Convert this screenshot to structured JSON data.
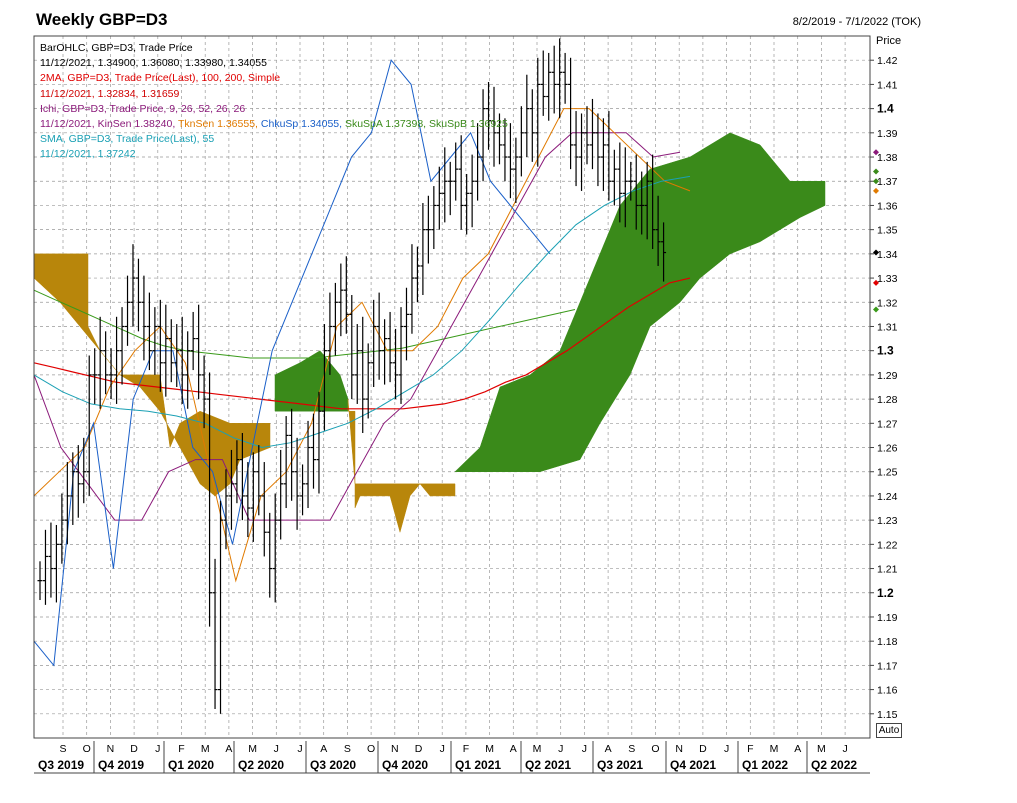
{
  "header": {
    "title": "Weekly GBP=D3",
    "date_range": "8/2/2019 - 7/1/2022 (TOK)",
    "price_axis_label": "Price",
    "auto_button": "Auto"
  },
  "legend": [
    {
      "text": "BarOHLC, GBP=D3, Trade Price",
      "color": "#000000"
    },
    {
      "text": "11/12/2021, 1.34900, 1.36080, 1.33980, 1.34055",
      "color": "#000000"
    },
    {
      "text": "2MA, GBP=D3, Trade Price(Last),  100, 200, Simple",
      "color": "#e00000"
    },
    {
      "text": "11/12/2021, 1.32834, 1.31659",
      "color": "#d00000",
      "text2": "",
      "color2": ""
    },
    {
      "text": "Ichi, GBP=D3, Trade Price,  9, 26, 52, 26, 26",
      "color": "#8b1a7a"
    },
    {
      "segments": [
        {
          "text": "11/12/2021, KinSen 1.38240, ",
          "color": "#8b1a7a"
        },
        {
          "text": "TknSen 1.36555, ",
          "color": "#e07a00"
        },
        {
          "text": "ChkuSp 1.34055, ",
          "color": "#1a5fc8"
        },
        {
          "text": "SkuSpA 1.37398, ",
          "color": "#3a8a1a"
        },
        {
          "text": "SkuSpB 1.36925",
          "color": "#3a8a1a"
        }
      ]
    },
    {
      "text": "SMA, GBP=D3, Trade Price(Last),  55",
      "color": "#1aa0b4"
    },
    {
      "text": "11/12/2021, 1.37242",
      "color": "#1aa0b4"
    }
  ],
  "colors": {
    "ma100": "#e00000",
    "ma200": "#3a9a1a",
    "kijun": "#8b1a7a",
    "tenkan": "#e07a00",
    "chikou": "#1a5fc8",
    "sma55": "#1aa0b4",
    "cloud_bull": "#3a8a1a",
    "cloud_bear": "#b8860b",
    "bars": "#000000"
  },
  "chart_data": {
    "type": "line",
    "title": "Weekly GBP=D3",
    "ylim": [
      1.14,
      1.43
    ],
    "y_ticks": [
      "1.42",
      "1.41",
      "1.4",
      "1.39",
      "1.38",
      "1.37",
      "1.36",
      "1.35",
      "1.34",
      "1.33",
      "1.32",
      "1.31",
      "1.3",
      "1.29",
      "1.28",
      "1.27",
      "1.26",
      "1.25",
      "1.24",
      "1.23",
      "1.22",
      "1.21",
      "1.2",
      "1.19",
      "1.18",
      "1.17",
      "1.16",
      "1.15"
    ],
    "month_labels": [
      "S",
      "O",
      "N",
      "D",
      "J",
      "F",
      "M",
      "A",
      "M",
      "J",
      "J",
      "A",
      "S",
      "O",
      "N",
      "D",
      "J",
      "F",
      "M",
      "A",
      "M",
      "J",
      "J",
      "A",
      "S",
      "O",
      "N",
      "D",
      "J",
      "F",
      "M",
      "A",
      "M",
      "J"
    ],
    "quarter_labels": [
      "Q3 2019",
      "Q4 2019",
      "Q1 2020",
      "Q2 2020",
      "Q3 2020",
      "Q4 2020",
      "Q1 2021",
      "Q2 2021",
      "Q3 2021",
      "Q4 2021",
      "Q1 2022",
      "Q2 2022"
    ],
    "last_bar": {
      "date": "11/12/2021",
      "open": 1.349,
      "high": 1.3608,
      "low": 1.3398,
      "close": 1.34055
    },
    "closes": [
      1.205,
      1.215,
      1.21,
      1.22,
      1.23,
      1.24,
      1.25,
      1.245,
      1.25,
      1.29,
      1.29,
      1.3,
      1.29,
      1.29,
      1.3,
      1.31,
      1.32,
      1.33,
      1.32,
      1.31,
      1.3,
      1.31,
      1.295,
      1.305,
      1.295,
      1.3,
      1.29,
      1.3,
      1.305,
      1.29,
      1.28,
      1.2,
      1.16,
      1.23,
      1.24,
      1.245,
      1.255,
      1.24,
      1.235,
      1.25,
      1.24,
      1.225,
      1.21,
      1.23,
      1.245,
      1.265,
      1.25,
      1.24,
      1.245,
      1.26,
      1.255,
      1.275,
      1.3,
      1.31,
      1.32,
      1.325,
      1.315,
      1.29,
      1.3,
      1.28,
      1.295,
      1.31,
      1.3,
      1.305,
      1.295,
      1.29,
      1.31,
      1.315,
      1.33,
      1.335,
      1.35,
      1.35,
      1.36,
      1.365,
      1.37,
      1.37,
      1.375,
      1.36,
      1.365,
      1.37,
      1.38,
      1.4,
      1.395,
      1.39,
      1.385,
      1.38,
      1.375,
      1.38,
      1.39,
      1.4,
      1.39,
      1.41,
      1.405,
      1.415,
      1.41,
      1.415,
      1.41,
      1.385,
      1.38,
      1.39,
      1.385,
      1.39,
      1.38,
      1.385,
      1.37,
      1.375,
      1.365,
      1.37,
      1.37,
      1.36,
      1.36,
      1.37,
      1.35,
      1.345,
      1.34055
    ],
    "series": [
      {
        "name": "SMA 100",
        "values": [
          1.295,
          1.293,
          1.291,
          1.289,
          1.287,
          1.286,
          1.285,
          1.284,
          1.283,
          1.282,
          1.281,
          1.28,
          1.279,
          1.278,
          1.277,
          1.276,
          1.276,
          1.276,
          1.276,
          1.277,
          1.278,
          1.28,
          1.283,
          1.287,
          1.29,
          1.295,
          1.3,
          1.306,
          1.312,
          1.318,
          1.323,
          1.328,
          1.33
        ]
      },
      {
        "name": "SMA 200",
        "values": [
          1.325,
          1.321,
          1.317,
          1.313,
          1.309,
          1.305,
          1.302,
          1.3,
          1.299,
          1.298,
          1.297,
          1.297,
          1.297,
          1.297,
          1.298,
          1.299,
          1.3,
          1.301,
          1.303,
          1.305,
          1.307,
          1.309,
          1.311,
          1.313,
          1.315,
          1.317
        ]
      },
      {
        "name": "Kijun",
        "values": [
          1.29,
          1.26,
          1.245,
          1.23,
          1.23,
          1.25,
          1.255,
          1.255,
          1.23,
          1.23,
          1.23,
          1.23,
          1.25,
          1.27,
          1.28,
          1.3,
          1.32,
          1.34,
          1.36,
          1.38,
          1.39,
          1.39,
          1.39,
          1.38,
          1.382
        ]
      },
      {
        "name": "Tenkan",
        "values": [
          1.24,
          1.25,
          1.26,
          1.285,
          1.3,
          1.31,
          1.295,
          1.25,
          1.205,
          1.24,
          1.25,
          1.27,
          1.31,
          1.32,
          1.3,
          1.3,
          1.31,
          1.33,
          1.34,
          1.36,
          1.38,
          1.4,
          1.4,
          1.39,
          1.38,
          1.37,
          1.366
        ]
      },
      {
        "name": "Chikou",
        "values": [
          1.18,
          1.17,
          1.25,
          1.27,
          1.21,
          1.28,
          1.3,
          1.3,
          1.26,
          1.25,
          1.22,
          1.26,
          1.3,
          1.32,
          1.34,
          1.36,
          1.38,
          1.39,
          1.42,
          1.41,
          1.37,
          1.38,
          1.39,
          1.37,
          1.36,
          1.35,
          1.34
        ]
      },
      {
        "name": "SMA 55",
        "values": [
          1.29,
          1.283,
          1.278,
          1.276,
          1.275,
          1.273,
          1.27,
          1.264,
          1.26,
          1.262,
          1.266,
          1.27,
          1.276,
          1.283,
          1.29,
          1.3,
          1.313,
          1.327,
          1.34,
          1.352,
          1.36,
          1.366,
          1.37,
          1.372
        ]
      }
    ]
  }
}
